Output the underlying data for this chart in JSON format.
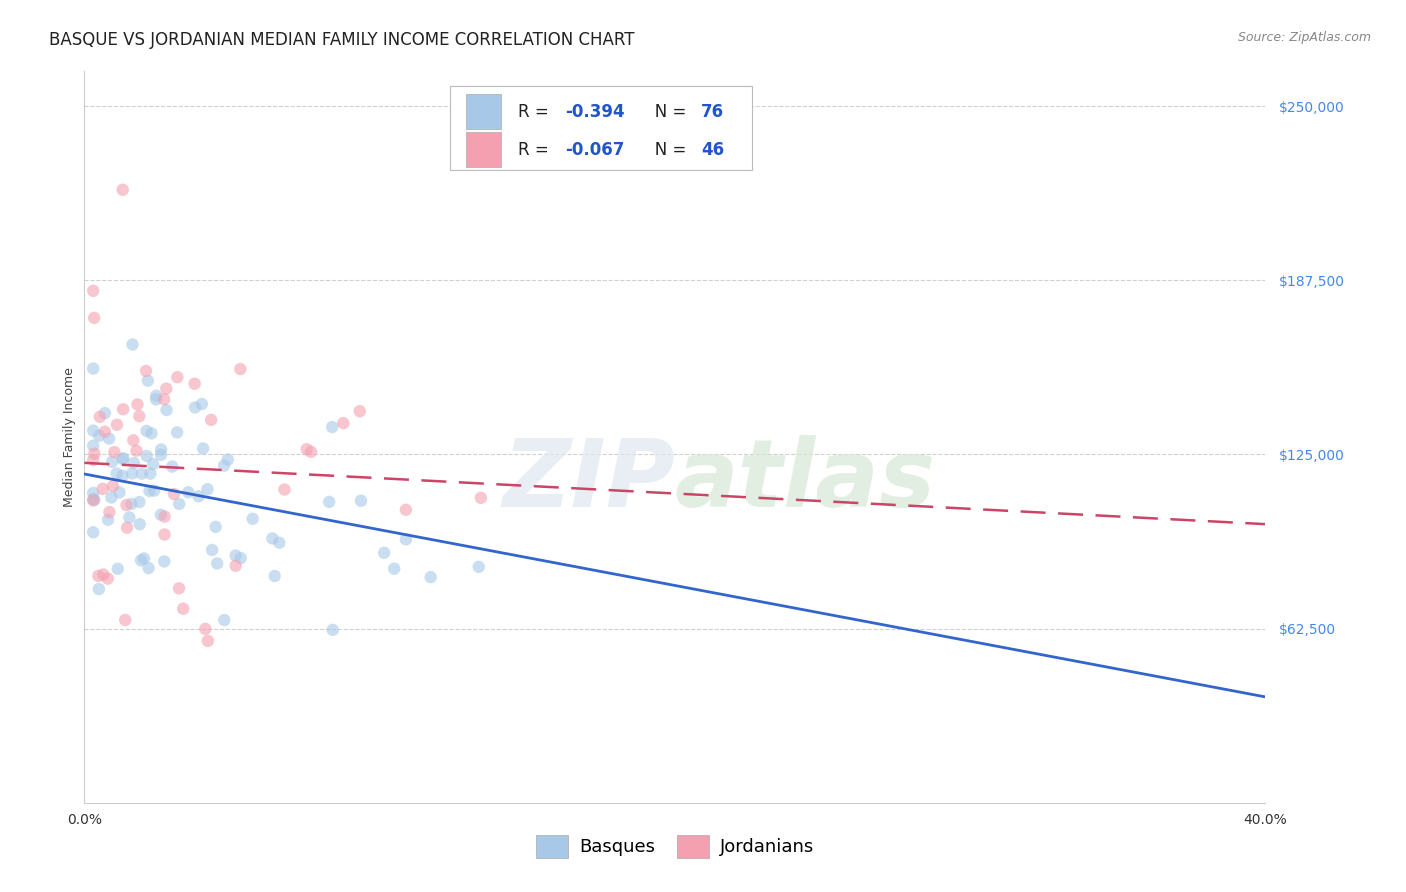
{
  "title": "BASQUE VS JORDANIAN MEDIAN FAMILY INCOME CORRELATION CHART",
  "source": "Source: ZipAtlas.com",
  "ylabel": "Median Family Income",
  "ytick_labels": [
    "$62,500",
    "$125,000",
    "$187,500",
    "$250,000"
  ],
  "ytick_values": [
    62500,
    125000,
    187500,
    250000
  ],
  "ymin": 0,
  "ymax": 262500,
  "xmin": 0.0,
  "xmax": 0.4,
  "watermark_zip": "ZIP",
  "watermark_atlas": "atlas",
  "blue_color": "#a8c8e8",
  "pink_color": "#f4a0b0",
  "blue_line_color": "#3366cc",
  "pink_line_color": "#cc4466",
  "legend_r_color": "#1a1a2e",
  "legend_val_color": "#2255cc",
  "background_color": "#ffffff",
  "grid_color": "#d0d0d0",
  "title_fontsize": 12,
  "source_fontsize": 9,
  "axis_label_fontsize": 9,
  "tick_fontsize": 10,
  "legend_fontsize": 12,
  "marker_size": 80,
  "marker_alpha": 0.6,
  "basque_trend_x": [
    0.0,
    0.4
  ],
  "basque_trend_y": [
    118000,
    38000
  ],
  "jordanian_trend_x": [
    0.0,
    0.4
  ],
  "jordanian_trend_y": [
    122000,
    100000
  ]
}
